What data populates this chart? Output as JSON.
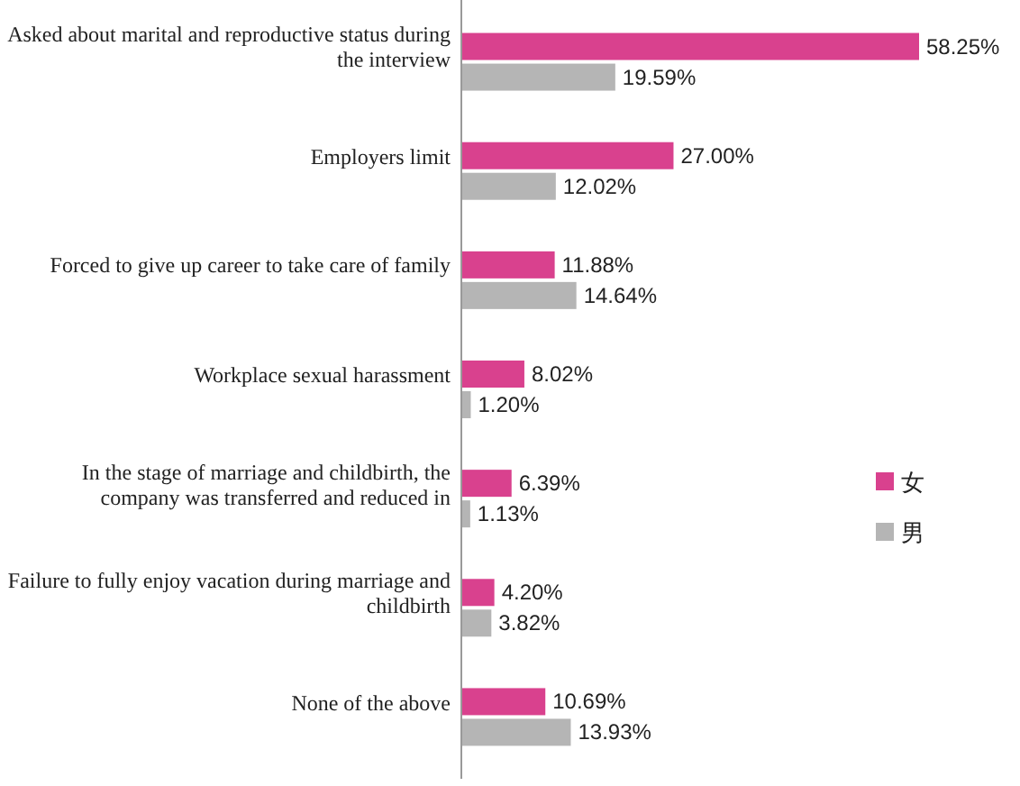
{
  "chart_data": {
    "type": "bar",
    "orientation": "horizontal",
    "categories": [
      "Asked about marital and reproductive status during the interview",
      "Employers limit",
      "Forced to give up career to take care of family",
      "Workplace sexual harassment",
      "In the stage of marriage and childbirth, the company was transferred and reduced in",
      "Failure to fully enjoy vacation during marriage and childbirth",
      "None of  the above"
    ],
    "series": [
      {
        "name": "女",
        "color": "#d9418e",
        "values": [
          58.25,
          27.0,
          11.88,
          8.02,
          6.39,
          4.2,
          10.69
        ],
        "value_labels": [
          "58.25%",
          "27.00%",
          "11.88%",
          "8.02%",
          "6.39%",
          "4.20%",
          "10.69%"
        ]
      },
      {
        "name": "男",
        "color": "#b5b5b5",
        "values": [
          19.59,
          12.02,
          14.64,
          1.2,
          1.13,
          3.82,
          13.93
        ],
        "value_labels": [
          "19.59%",
          "12.02%",
          "14.64%",
          "1.20%",
          "1.13%",
          "3.82%",
          "13.93%"
        ]
      }
    ],
    "legend": "right",
    "grid": false
  }
}
